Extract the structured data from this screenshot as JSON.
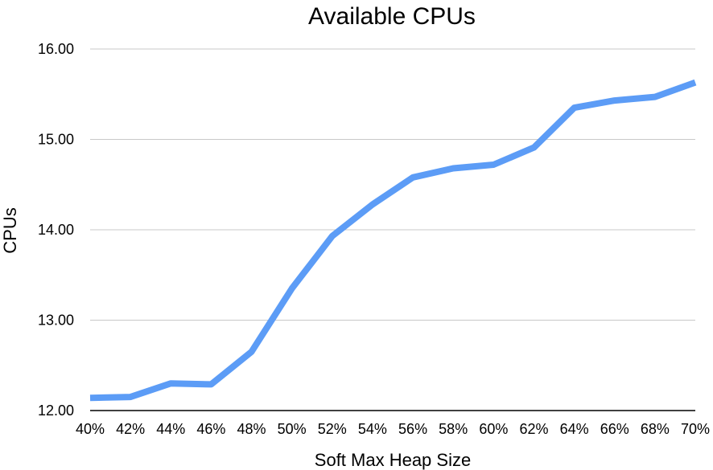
{
  "chart_data": {
    "type": "line",
    "title": "Available CPUs",
    "xlabel": "Soft Max Heap Size",
    "ylabel": "CPUs",
    "categories": [
      "40%",
      "42%",
      "44%",
      "46%",
      "48%",
      "50%",
      "52%",
      "54%",
      "56%",
      "58%",
      "60%",
      "62%",
      "64%",
      "66%",
      "68%",
      "70%"
    ],
    "series": [
      {
        "values": [
          12.14,
          12.15,
          12.3,
          12.29,
          12.65,
          13.35,
          13.93,
          14.28,
          14.58,
          14.68,
          14.72,
          14.91,
          15.35,
          15.43,
          15.47,
          15.63
        ]
      }
    ],
    "ylim": [
      12,
      16
    ],
    "yticks": [
      "12.00",
      "13.00",
      "14.00",
      "15.00",
      "16.00"
    ],
    "grid": true,
    "legend": "none",
    "colors": {
      "line": "#5c9cf6",
      "grid": "#c8c8c8"
    }
  }
}
